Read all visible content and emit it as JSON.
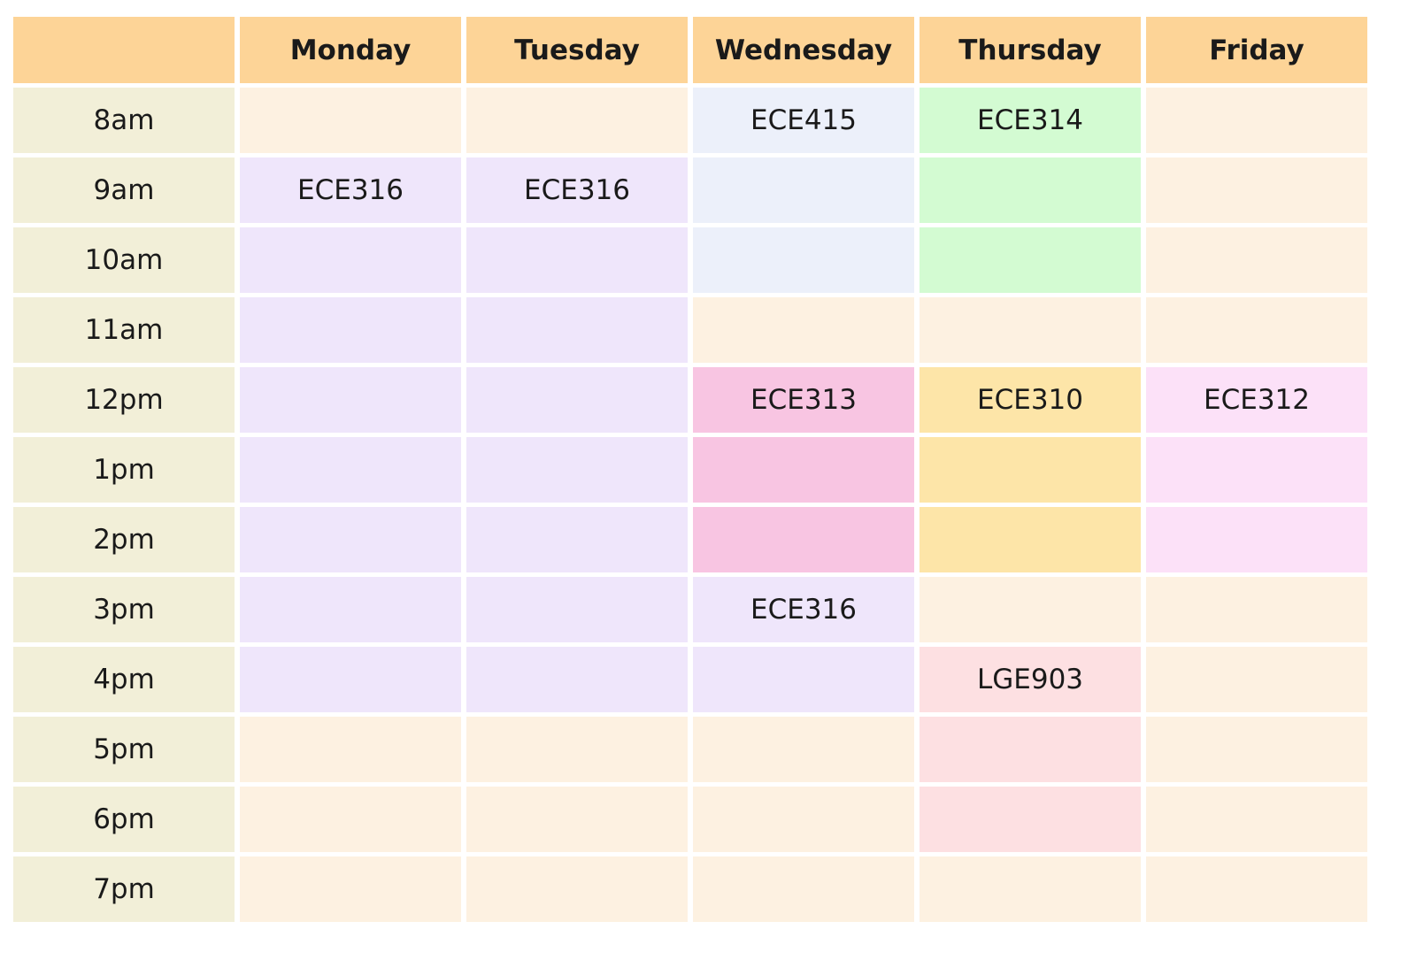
{
  "colors": {
    "header": "#fdd497",
    "time": "#f2efd8",
    "empty": "#fdf1e1",
    "ECE316": "#efe6fb",
    "ECE415": "#ecf0fa",
    "ECE314": "#d3fbd2",
    "ECE313": "#f8c5e2",
    "ECE310": "#fde5a8",
    "ECE312": "#fce1f8",
    "LGE903": "#fde0e2"
  },
  "days": [
    "Monday",
    "Tuesday",
    "Wednesday",
    "Thursday",
    "Friday"
  ],
  "times": [
    "8am",
    "9am",
    "10am",
    "11am",
    "12pm",
    "1pm",
    "2pm",
    "3pm",
    "4pm",
    "5pm",
    "6pm",
    "7pm"
  ],
  "schedule": [
    [
      {
        "label": "",
        "course": ""
      },
      {
        "label": "",
        "course": ""
      },
      {
        "label": "ECE415",
        "course": "ECE415"
      },
      {
        "label": "ECE314",
        "course": "ECE314"
      },
      {
        "label": "",
        "course": ""
      }
    ],
    [
      {
        "label": "ECE316",
        "course": "ECE316"
      },
      {
        "label": "ECE316",
        "course": "ECE316"
      },
      {
        "label": "",
        "course": "ECE415"
      },
      {
        "label": "",
        "course": "ECE314"
      },
      {
        "label": "",
        "course": ""
      }
    ],
    [
      {
        "label": "",
        "course": "ECE316"
      },
      {
        "label": "",
        "course": "ECE316"
      },
      {
        "label": "",
        "course": "ECE415"
      },
      {
        "label": "",
        "course": "ECE314"
      },
      {
        "label": "",
        "course": ""
      }
    ],
    [
      {
        "label": "",
        "course": "ECE316"
      },
      {
        "label": "",
        "course": "ECE316"
      },
      {
        "label": "",
        "course": ""
      },
      {
        "label": "",
        "course": ""
      },
      {
        "label": "",
        "course": ""
      }
    ],
    [
      {
        "label": "",
        "course": "ECE316"
      },
      {
        "label": "",
        "course": "ECE316"
      },
      {
        "label": "ECE313",
        "course": "ECE313"
      },
      {
        "label": "ECE310",
        "course": "ECE310"
      },
      {
        "label": "ECE312",
        "course": "ECE312"
      }
    ],
    [
      {
        "label": "",
        "course": "ECE316"
      },
      {
        "label": "",
        "course": "ECE316"
      },
      {
        "label": "",
        "course": "ECE313"
      },
      {
        "label": "",
        "course": "ECE310"
      },
      {
        "label": "",
        "course": "ECE312"
      }
    ],
    [
      {
        "label": "",
        "course": "ECE316"
      },
      {
        "label": "",
        "course": "ECE316"
      },
      {
        "label": "",
        "course": "ECE313"
      },
      {
        "label": "",
        "course": "ECE310"
      },
      {
        "label": "",
        "course": "ECE312"
      }
    ],
    [
      {
        "label": "",
        "course": "ECE316"
      },
      {
        "label": "",
        "course": "ECE316"
      },
      {
        "label": "ECE316",
        "course": "ECE316"
      },
      {
        "label": "",
        "course": ""
      },
      {
        "label": "",
        "course": ""
      }
    ],
    [
      {
        "label": "",
        "course": "ECE316"
      },
      {
        "label": "",
        "course": "ECE316"
      },
      {
        "label": "",
        "course": "ECE316"
      },
      {
        "label": "LGE903",
        "course": "LGE903"
      },
      {
        "label": "",
        "course": ""
      }
    ],
    [
      {
        "label": "",
        "course": ""
      },
      {
        "label": "",
        "course": ""
      },
      {
        "label": "",
        "course": ""
      },
      {
        "label": "",
        "course": "LGE903"
      },
      {
        "label": "",
        "course": ""
      }
    ],
    [
      {
        "label": "",
        "course": ""
      },
      {
        "label": "",
        "course": ""
      },
      {
        "label": "",
        "course": ""
      },
      {
        "label": "",
        "course": "LGE903"
      },
      {
        "label": "",
        "course": ""
      }
    ],
    [
      {
        "label": "",
        "course": ""
      },
      {
        "label": "",
        "course": ""
      },
      {
        "label": "",
        "course": ""
      },
      {
        "label": "",
        "course": ""
      },
      {
        "label": "",
        "course": ""
      }
    ]
  ]
}
